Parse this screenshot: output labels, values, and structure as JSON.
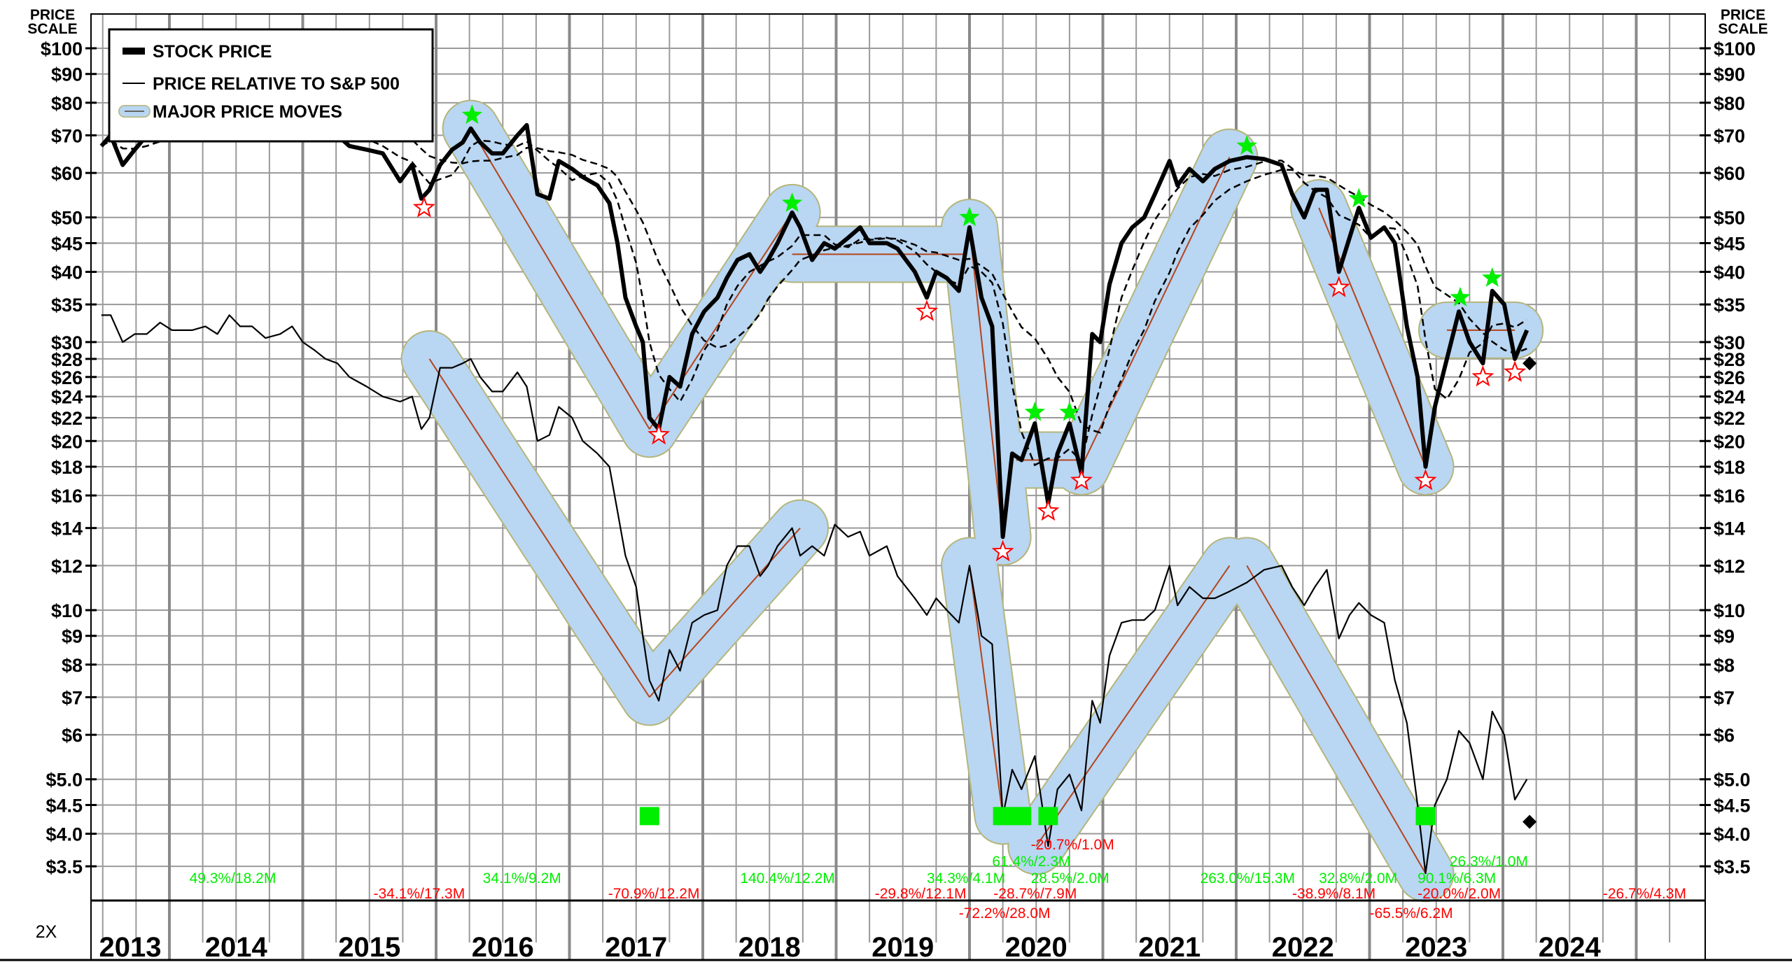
{
  "chart_data": {
    "type": "line",
    "y_scale": "log",
    "ylim": [
      3.05,
      115
    ],
    "xlim": [
      2013.42,
      2025.52
    ],
    "grid": true,
    "legend_placement": "top-left",
    "price_scale_label": [
      "PRICE",
      "SCALE"
    ],
    "scale_note": "2X",
    "x_tick_labels": [
      "2013",
      "2014",
      "2015",
      "2016",
      "2017",
      "2018",
      "2019",
      "2020",
      "2021",
      "2022",
      "2023",
      "2024"
    ],
    "y_ticks": [
      {
        "value": 100,
        "label": "$100"
      },
      {
        "value": 90,
        "label": "$90"
      },
      {
        "value": 80,
        "label": "$80"
      },
      {
        "value": 70,
        "label": "$70"
      },
      {
        "value": 60,
        "label": "$60"
      },
      {
        "value": 50,
        "label": "$50"
      },
      {
        "value": 45,
        "label": "$45"
      },
      {
        "value": 40,
        "label": "$40"
      },
      {
        "value": 35,
        "label": "$35"
      },
      {
        "value": 30,
        "label": "$30"
      },
      {
        "value": 28,
        "label": "$28"
      },
      {
        "value": 26,
        "label": "$26"
      },
      {
        "value": 24,
        "label": "$24"
      },
      {
        "value": 22,
        "label": "$22"
      },
      {
        "value": 20,
        "label": "$20"
      },
      {
        "value": 18,
        "label": "$18"
      },
      {
        "value": 16,
        "label": "$16"
      },
      {
        "value": 14,
        "label": "$14"
      },
      {
        "value": 12,
        "label": "$12"
      },
      {
        "value": 10,
        "label": "$10"
      },
      {
        "value": 9,
        "label": "$9"
      },
      {
        "value": 8,
        "label": "$8"
      },
      {
        "value": 7,
        "label": "$7"
      },
      {
        "value": 6,
        "label": "$6"
      },
      {
        "value": 5,
        "label": "$5.0"
      },
      {
        "value": 4.5,
        "label": "$4.5"
      },
      {
        "value": 4,
        "label": "$4.0"
      },
      {
        "value": 3.5,
        "label": "$3.5"
      }
    ],
    "legend": [
      {
        "label": "STOCK PRICE",
        "style": "thick-line"
      },
      {
        "label": "PRICE RELATIVE TO S&P 500",
        "style": "thin-line"
      },
      {
        "label": "MAJOR PRICE MOVES",
        "style": "band"
      }
    ],
    "x": [
      2013.49,
      2013.56,
      2013.65,
      2013.74,
      2013.83,
      2013.93,
      2014.02,
      2014.1,
      2014.17,
      2014.27,
      2014.36,
      2014.45,
      2014.53,
      2014.62,
      2014.72,
      2014.83,
      2014.92,
      2015.0,
      2015.09,
      2015.17,
      2015.26,
      2015.35,
      2015.48,
      2015.6,
      2015.73,
      2015.82,
      2015.89,
      2015.95,
      2016.03,
      2016.12,
      2016.2,
      2016.26,
      2016.33,
      2016.42,
      2016.5,
      2016.61,
      2016.68,
      2016.76,
      2016.85,
      2016.92,
      2017.02,
      2017.1,
      2017.21,
      2017.3,
      2017.36,
      2017.42,
      2017.5,
      2017.55,
      2017.6,
      2017.67,
      2017.75,
      2017.83,
      2017.92,
      2018.01,
      2018.11,
      2018.18,
      2018.26,
      2018.35,
      2018.43,
      2018.49,
      2018.56,
      2018.67,
      2018.73,
      2018.82,
      2018.91,
      2018.99,
      2019.09,
      2019.18,
      2019.25,
      2019.38,
      2019.46,
      2019.59,
      2019.68,
      2019.75,
      2019.83,
      2019.92,
      2020.0,
      2020.09,
      2020.17,
      2020.25,
      2020.32,
      2020.39,
      2020.49,
      2020.59,
      2020.66,
      2020.75,
      2020.84,
      2020.92,
      2020.98,
      2021.05,
      2021.14,
      2021.22,
      2021.31,
      2021.39,
      2021.5,
      2021.56,
      2021.65,
      2021.75,
      2021.84,
      2021.95,
      2022.08,
      2022.21,
      2022.34,
      2022.42,
      2022.51,
      2022.59,
      2022.68,
      2022.77,
      2022.85,
      2022.92,
      2023.01,
      2023.11,
      2023.19,
      2023.28,
      2023.36,
      2023.42,
      2023.49,
      2023.58,
      2023.67,
      2023.75,
      2023.85,
      2023.92,
      2024.01,
      2024.09,
      2024.18
    ],
    "series": [
      {
        "name": "STOCK PRICE",
        "values": [
          67,
          70,
          62,
          66,
          70,
          75,
          72,
          70,
          74,
          75,
          77,
          80,
          77,
          79,
          76,
          78,
          80,
          75,
          72,
          73,
          70,
          67,
          66,
          65,
          58,
          62,
          54,
          56,
          62,
          66,
          68,
          72,
          68,
          65,
          65,
          70,
          73,
          55,
          54,
          63,
          61,
          59,
          57,
          53,
          45,
          36,
          32,
          30,
          22,
          21,
          26,
          25,
          31,
          34,
          36,
          39,
          42,
          43,
          40,
          42,
          45,
          51,
          48,
          42,
          45,
          44,
          46,
          48,
          45,
          45,
          44,
          40,
          36,
          40,
          39,
          37,
          48,
          36,
          32,
          13.5,
          19,
          18.5,
          21.5,
          15.5,
          19,
          21.5,
          17.5,
          31,
          30,
          38,
          45,
          48,
          50,
          55,
          63,
          57,
          61,
          58,
          61,
          63,
          64,
          63.5,
          62,
          55,
          50,
          56,
          56,
          40,
          46,
          52,
          46,
          48,
          45,
          32,
          26,
          18,
          23,
          28,
          34,
          30,
          27.5,
          37,
          35,
          28,
          31.5
        ]
      },
      {
        "name": "PRICE RELATIVE TO S&P 500",
        "values": [
          33.5,
          33.5,
          30,
          31,
          31,
          32.5,
          31.5,
          31.5,
          31.5,
          32,
          31,
          33.5,
          32,
          32,
          30.5,
          31,
          32,
          30,
          29,
          28,
          27.5,
          26,
          25,
          24,
          23.5,
          24,
          21,
          22,
          27,
          27,
          27.5,
          28,
          26,
          24.5,
          24.5,
          26.5,
          25,
          20,
          20.5,
          23,
          22,
          20,
          19,
          18,
          15,
          12.5,
          11,
          9,
          7.5,
          6.9,
          8.5,
          7.8,
          9.5,
          9.8,
          10,
          12,
          13,
          13,
          11.5,
          12,
          13,
          14,
          12.5,
          13,
          12.5,
          14.2,
          13.5,
          13.8,
          12.5,
          13,
          11.5,
          10.5,
          9.8,
          10.5,
          10,
          9.5,
          12,
          9,
          8.7,
          4.3,
          5.2,
          4.8,
          5.5,
          3.8,
          4.8,
          5.1,
          4.4,
          6.9,
          6.3,
          8.3,
          9.5,
          9.6,
          9.6,
          10,
          12,
          10.2,
          11,
          10.5,
          10.5,
          10.8,
          11.2,
          11.8,
          12,
          11,
          10.2,
          11,
          11.8,
          8.9,
          9.8,
          10.3,
          9.8,
          9.5,
          7.5,
          6.3,
          4.5,
          3.4,
          4.5,
          5,
          6.1,
          5.8,
          5,
          6.6,
          6,
          4.6,
          5
        ]
      }
    ],
    "major_price_moves": [
      {
        "from": [
          2016.26,
          72
        ],
        "to": [
          2017.6,
          21
        ]
      },
      {
        "from": [
          2017.6,
          21
        ],
        "to": [
          2018.67,
          51
        ]
      },
      {
        "from": [
          2018.67,
          43
        ],
        "to": [
          2019.98,
          43
        ]
      },
      {
        "from": [
          2020.0,
          48
        ],
        "to": [
          2020.25,
          13.5
        ]
      },
      {
        "from": [
          2020.35,
          18.5
        ],
        "to": [
          2020.8,
          18.5
        ]
      },
      {
        "from": [
          2020.84,
          18
        ],
        "to": [
          2021.95,
          64
        ]
      },
      {
        "from": [
          2022.62,
          52
        ],
        "to": [
          2023.42,
          18
        ]
      },
      {
        "from": [
          2023.58,
          31.5
        ],
        "to": [
          2024.09,
          31.5
        ]
      },
      {
        "from": [
          2015.95,
          28
        ],
        "to": [
          2017.6,
          7
        ]
      },
      {
        "from": [
          2017.6,
          7
        ],
        "to": [
          2018.73,
          14
        ]
      },
      {
        "from": [
          2020.0,
          12
        ],
        "to": [
          2020.25,
          4.3
        ]
      },
      {
        "from": [
          2020.5,
          3.8
        ],
        "to": [
          2021.95,
          12
        ]
      },
      {
        "from": [
          2022.08,
          12
        ],
        "to": [
          2023.42,
          3.4
        ]
      }
    ],
    "peak_markers": [
      [
        2016.27,
        76
      ],
      [
        2018.67,
        53
      ],
      [
        2020.0,
        50
      ],
      [
        2020.49,
        22.5
      ],
      [
        2020.75,
        22.5
      ],
      [
        2022.08,
        67
      ],
      [
        2022.92,
        54
      ],
      [
        2023.68,
        36
      ],
      [
        2023.92,
        39
      ]
    ],
    "trough_markers": [
      [
        2015.91,
        52
      ],
      [
        2017.67,
        20.5
      ],
      [
        2019.68,
        34
      ],
      [
        2020.25,
        12.7
      ],
      [
        2020.59,
        15
      ],
      [
        2020.84,
        17
      ],
      [
        2022.77,
        37.5
      ],
      [
        2023.42,
        17
      ],
      [
        2023.85,
        26
      ],
      [
        2024.09,
        26.5
      ]
    ],
    "signal_squares": [
      [
        2017.6,
        4.3
      ],
      [
        2020.25,
        4.3
      ],
      [
        2020.39,
        4.3
      ],
      [
        2020.59,
        4.3
      ]
    ],
    "signal_squares_2": [
      [
        2023.42,
        4.3
      ]
    ],
    "diamonds": [
      [
        2024.2,
        27.5
      ],
      [
        2024.2,
        4.2
      ]
    ],
    "move_labels_up": [
      {
        "date": 2014.15,
        "text": "49.3%/18.2M"
      },
      {
        "date": 2016.35,
        "text": "34.1%/9.2M"
      },
      {
        "date": 2018.28,
        "text": "140.4%/12.2M"
      },
      {
        "date": 2019.68,
        "text": "34.3%/4.1M"
      },
      {
        "date": 2020.17,
        "text": "61.4%/2.3M"
      },
      {
        "date": 2020.46,
        "text": "28.5%/2.0M"
      },
      {
        "date": 2021.73,
        "text": "263.0%/15.3M"
      },
      {
        "date": 2022.62,
        "text": "32.8%/2.0M"
      },
      {
        "date": 2023.36,
        "text": "90.1%/6.3M"
      },
      {
        "date": 2023.6,
        "text": "26.3%/1.0M"
      }
    ],
    "move_labels_down": [
      {
        "date": 2015.53,
        "text": "-34.1%/17.3M"
      },
      {
        "date": 2017.29,
        "text": "-70.9%/12.2M"
      },
      {
        "date": 2019.29,
        "text": "-29.8%/12.1M"
      },
      {
        "date": 2019.92,
        "text": "-72.2%/28.0M"
      },
      {
        "date": 2020.18,
        "text": "-28.7%/7.9M"
      },
      {
        "date": 2020.46,
        "text": "-20.7%/1.0M"
      },
      {
        "date": 2022.42,
        "text": "-38.9%/8.1M"
      },
      {
        "date": 2023.0,
        "text": "-65.5%/6.2M"
      },
      {
        "date": 2023.36,
        "text": "-20.0%/2.0M"
      },
      {
        "date": 2024.75,
        "text": "-26.7%/4.3M"
      }
    ],
    "colors": {
      "stock": "#000000",
      "band": "#b9d6f2",
      "band_outline": "#b5b57a",
      "band_center": "#b4441c",
      "up": "#00ee00",
      "down": "#ff0000",
      "grid": "#9a9a9a"
    }
  }
}
